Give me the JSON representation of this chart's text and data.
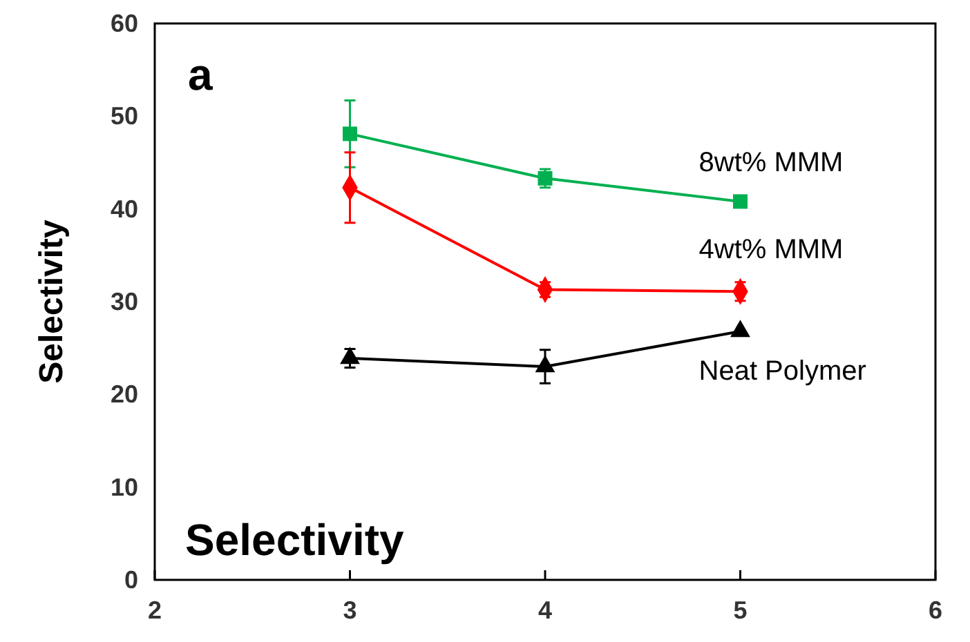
{
  "chart_data": {
    "type": "line",
    "ylabel": "Selectivity",
    "xlim": [
      2,
      6
    ],
    "xticks": [
      2,
      3,
      4,
      5,
      6
    ],
    "ylim": [
      0,
      60
    ],
    "yticks": [
      0,
      10,
      20,
      30,
      40,
      50,
      60
    ],
    "grid": false,
    "x": [
      3,
      4,
      5
    ],
    "annotations": [
      "a",
      "Selectivity"
    ],
    "series": [
      {
        "name": "8wt% MMM",
        "color": "#00b050",
        "marker": "square",
        "values": [
          48.1,
          43.3,
          40.8
        ],
        "errors": [
          3.6,
          1,
          null
        ]
      },
      {
        "name": "4wt% MMM",
        "color": "#ff0000",
        "marker": "diamond",
        "values": [
          42.3,
          31.3,
          31.1
        ],
        "errors": [
          3.8,
          0.8,
          1
        ]
      },
      {
        "name": "Neat Polymer",
        "color": "#000000",
        "marker": "triangle",
        "values": [
          23.9,
          23.0,
          26.8
        ],
        "errors": [
          1,
          1.8,
          null
        ]
      }
    ]
  }
}
